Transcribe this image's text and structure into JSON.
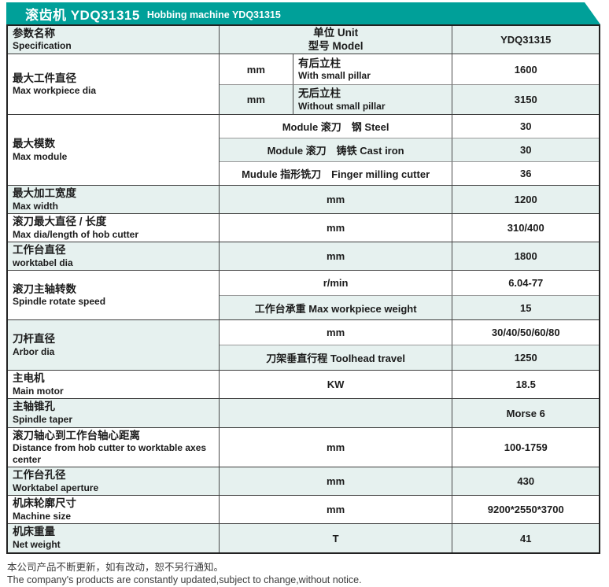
{
  "banner": {
    "title_zh": "滚齿机 YDQ31315",
    "title_en": "Hobbing machine YDQ31315"
  },
  "table_header": {
    "spec_zh": "参数名称",
    "spec_en": "Specification",
    "unit_label": "单位 Unit",
    "model_label": "型号 Model",
    "model_value": "YDQ31315"
  },
  "specs": {
    "max_workpiece_dia": {
      "zh": "最大工件直径",
      "en": "Max workpiece dia",
      "with_pillar": {
        "unit": "mm",
        "zh": "有后立柱",
        "en": "With small pillar",
        "value": "1600"
      },
      "without_pillar": {
        "unit": "mm",
        "zh": "无后立柱",
        "en": "Without small pillar",
        "value": "3150"
      }
    },
    "max_module": {
      "zh": "最大模数",
      "en": "Max module",
      "steel": {
        "label": "Module 滚刀　钢 Steel",
        "value": "30"
      },
      "cast_iron": {
        "label": "Module 滚刀　铸铁 Cast iron",
        "value": "30"
      },
      "finger_milling": {
        "label": "Mudule 指形铣刀　Finger milling cutter",
        "value": "36"
      }
    },
    "max_width": {
      "zh": "最大加工宽度",
      "en": "Max width",
      "unit": "mm",
      "value": "1200"
    },
    "hob_dia_length": {
      "zh": "滚刀最大直径 / 长度",
      "en": "Max dia/length of hob cutter",
      "unit": "mm",
      "value": "310/400"
    },
    "worktable_dia": {
      "zh": "工作台直径",
      "en": "worktabel dia",
      "unit": "mm",
      "value": "1800"
    },
    "spindle_speed": {
      "zh": "滚刀主轴转数",
      "en": "Spindle rotate speed",
      "speed": {
        "unit": "r/min",
        "value": "6.04-77"
      },
      "workpiece_weight": {
        "label": "工作台承重 Max workpiece weight",
        "value": "15"
      }
    },
    "arbor_dia": {
      "zh": "刀杆直径",
      "en": "Arbor dia",
      "dia": {
        "unit": "mm",
        "value": "30/40/50/60/80"
      },
      "toolhead_travel": {
        "label": "刀架垂直行程 Toolhead travel",
        "value": "1250"
      }
    },
    "main_motor": {
      "zh": "主电机",
      "en": "Main motor",
      "unit": "KW",
      "value": "18.5"
    },
    "spindle_taper": {
      "zh": "主轴锥孔",
      "en": "Spindle taper",
      "unit": "",
      "value": "Morse 6"
    },
    "axes_distance": {
      "zh": "滚刀轴心到工作台轴心距离",
      "en": "Distance from hob cutter to worktable axes center",
      "unit": "mm",
      "value": "100-1759"
    },
    "worktable_aperture": {
      "zh": "工作台孔径",
      "en": "Worktabel aperture",
      "unit": "mm",
      "value": "430"
    },
    "machine_size": {
      "zh": "机床轮廓尺寸",
      "en": "Machine size",
      "unit": "mm",
      "value": "9200*2550*3700"
    },
    "net_weight": {
      "zh": "机床重量",
      "en": "Net weight",
      "unit": "T",
      "value": "41"
    }
  },
  "footer": {
    "zh": "本公司产品不断更新，如有改动，恕不另行通知。",
    "en": "The company's products are constantly updated,subject to change,without notice."
  },
  "colors": {
    "banner_teal": "#00A099",
    "row_teal": "#E6F1EF"
  }
}
